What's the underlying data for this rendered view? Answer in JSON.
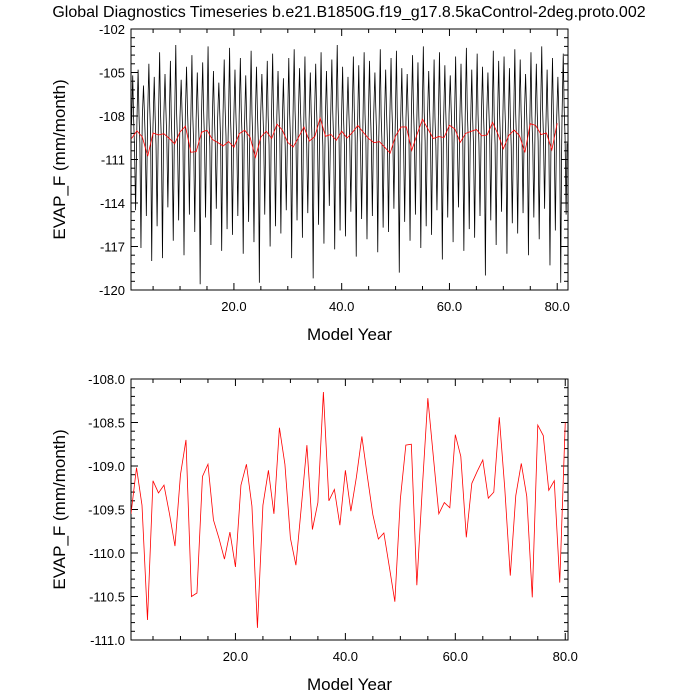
{
  "title": "Global Diagnostics Timeseries b.e21.B1850G.f19_g17.8.5kaControl-2deg.proto.002",
  "chart_data": [
    {
      "type": "line",
      "name": "monthly-and-annual",
      "xlabel": "Model Year",
      "ylabel": "EVAP_F (mm/month)",
      "xlim": [
        0.9,
        82.0
      ],
      "ylim": [
        -120,
        -102
      ],
      "xticks": [
        20,
        40,
        60,
        80
      ],
      "xtick_labels": [
        "20.0",
        "40.0",
        "60.0",
        "80.0"
      ],
      "yticks": [
        -120,
        -117,
        -114,
        -111,
        -108,
        -105,
        -102
      ],
      "ytick_labels": [
        "-120",
        "-117",
        "-114",
        "-111",
        "-108",
        "-105",
        "-102"
      ],
      "grid": false,
      "series": [
        {
          "color": "#000000",
          "monthly_max": [
            -105.2,
            -104.8,
            -105.9,
            -104.4,
            -105.3,
            -103.6,
            -105.1,
            -104.2,
            -103.1,
            -105.5,
            -104.6,
            -103.8,
            -105.0,
            -104.3,
            -103.2,
            -104.9,
            -105.7,
            -104.1,
            -103.3,
            -104.8,
            -104.0,
            -105.2,
            -103.5,
            -104.6,
            -105.1,
            -104.2,
            -103.7,
            -104.9,
            -105.4,
            -104.0,
            -103.4,
            -104.7,
            -103.9,
            -105.0,
            -104.4,
            -103.6,
            -104.9,
            -104.1,
            -103.1,
            -104.6,
            -105.3,
            -103.9,
            -104.5,
            -103.6,
            -104.2,
            -105.0,
            -103.4,
            -104.8,
            -104.0,
            -103.5,
            -104.7,
            -105.1,
            -103.8,
            -104.3,
            -103.2,
            -104.9,
            -104.1,
            -103.6,
            -104.5,
            -105.2,
            -103.9,
            -104.4,
            -103.3,
            -104.8,
            -103.7,
            -104.6,
            -105.0,
            -103.5,
            -104.2,
            -103.9,
            -104.7,
            -103.4,
            -104.1,
            -105.1,
            -103.6,
            -104.4,
            -103.2,
            -104.8,
            -104.0,
            -105.3,
            -103.7
          ],
          "monthly_min": [
            -114.5,
            -117.1,
            -114.9,
            -118.0,
            -115.6,
            -117.8,
            -114.3,
            -116.6,
            -115.2,
            -117.6,
            -114.8,
            -116.0,
            -119.6,
            -115.0,
            -116.9,
            -114.4,
            -117.3,
            -115.8,
            -116.2,
            -114.9,
            -117.5,
            -115.3,
            -116.7,
            -119.5,
            -114.8,
            -117.0,
            -115.6,
            -116.1,
            -114.5,
            -117.8,
            -115.2,
            -116.4,
            -114.7,
            -119.2,
            -115.5,
            -116.8,
            -114.2,
            -117.2,
            -115.9,
            -116.3,
            -114.6,
            -117.7,
            -115.1,
            -116.5,
            -114.9,
            -117.4,
            -115.7,
            -116.0,
            -114.4,
            -118.8,
            -115.3,
            -116.6,
            -114.8,
            -117.1,
            -115.6,
            -116.2,
            -114.5,
            -117.9,
            -115.0,
            -116.7,
            -114.3,
            -117.3,
            -115.8,
            -116.4,
            -114.9,
            -119.0,
            -115.2,
            -116.9,
            -114.6,
            -117.5,
            -115.4,
            -116.1,
            -114.7,
            -117.6,
            -115.0,
            -116.5,
            -114.4,
            -118.3,
            -115.9,
            -119.5,
            -114.8
          ],
          "monthly_range_note_x_start": 1.0,
          "monthly_range_note_x_end": 81.9
        },
        {
          "color": "#ff0000",
          "x": [
            1,
            2,
            3,
            4,
            5,
            6,
            7,
            8,
            9,
            10,
            11,
            12,
            13,
            14,
            15,
            16,
            17,
            18,
            19,
            20,
            21,
            22,
            23,
            24,
            25,
            26,
            27,
            28,
            29,
            30,
            31,
            32,
            33,
            34,
            35,
            36,
            37,
            38,
            39,
            40,
            41,
            42,
            43,
            44,
            45,
            46,
            47,
            48,
            49,
            50,
            51,
            52,
            53,
            54,
            55,
            56,
            57,
            58,
            59,
            60,
            61,
            62,
            63,
            64,
            65,
            66,
            67,
            68,
            69,
            70,
            71,
            72,
            73,
            74,
            75,
            76,
            77,
            78,
            79,
            80
          ],
          "y": [
            -109.55,
            -109.02,
            -109.45,
            -110.77,
            -109.17,
            -109.31,
            -109.22,
            -109.55,
            -109.92,
            -109.1,
            -108.7,
            -110.5,
            -110.46,
            -109.12,
            -108.98,
            -109.62,
            -109.83,
            -110.07,
            -109.76,
            -110.16,
            -109.22,
            -108.98,
            -109.46,
            -110.86,
            -109.45,
            -109.05,
            -109.55,
            -108.56,
            -108.98,
            -109.83,
            -110.14,
            -109.46,
            -108.76,
            -109.73,
            -109.42,
            -108.15,
            -109.4,
            -109.27,
            -109.68,
            -109.05,
            -109.52,
            -109.13,
            -108.66,
            -109.12,
            -109.56,
            -109.84,
            -109.77,
            -110.16,
            -110.56,
            -109.38,
            -108.76,
            -108.75,
            -110.37,
            -109.25,
            -108.22,
            -108.89,
            -109.55,
            -109.42,
            -109.48,
            -108.64,
            -108.89,
            -109.82,
            -109.2,
            -109.06,
            -108.93,
            -109.37,
            -109.3,
            -108.44,
            -109.26,
            -110.26,
            -109.34,
            -108.97,
            -109.35,
            -110.51,
            -108.53,
            -108.65,
            -109.28,
            -109.17,
            -110.34,
            -108.5
          ]
        }
      ]
    },
    {
      "type": "line",
      "name": "annual",
      "xlabel": "Model Year",
      "ylabel": "EVAP_F (mm/month)",
      "xlim": [
        1.0,
        80.5
      ],
      "ylim": [
        -111.0,
        -108.0
      ],
      "xticks": [
        20,
        40,
        60,
        80
      ],
      "xtick_labels": [
        "20.0",
        "40.0",
        "60.0",
        "80.0"
      ],
      "yticks": [
        -111.0,
        -110.5,
        -110.0,
        -109.5,
        -109.0,
        -108.5,
        -108.0
      ],
      "ytick_labels": [
        "-111.0",
        "-110.5",
        "-110.0",
        "-109.5",
        "-109.0",
        "-108.5",
        "-108.0"
      ],
      "grid": false,
      "series": [
        {
          "color": "#ff0000",
          "x": [
            1,
            2,
            3,
            4,
            5,
            6,
            7,
            8,
            9,
            10,
            11,
            12,
            13,
            14,
            15,
            16,
            17,
            18,
            19,
            20,
            21,
            22,
            23,
            24,
            25,
            26,
            27,
            28,
            29,
            30,
            31,
            32,
            33,
            34,
            35,
            36,
            37,
            38,
            39,
            40,
            41,
            42,
            43,
            44,
            45,
            46,
            47,
            48,
            49,
            50,
            51,
            52,
            53,
            54,
            55,
            56,
            57,
            58,
            59,
            60,
            61,
            62,
            63,
            64,
            65,
            66,
            67,
            68,
            69,
            70,
            71,
            72,
            73,
            74,
            75,
            76,
            77,
            78,
            79,
            80
          ],
          "y": [
            -109.55,
            -109.02,
            -109.45,
            -110.77,
            -109.17,
            -109.31,
            -109.22,
            -109.55,
            -109.92,
            -109.1,
            -108.7,
            -110.5,
            -110.46,
            -109.12,
            -108.98,
            -109.62,
            -109.83,
            -110.07,
            -109.76,
            -110.16,
            -109.22,
            -108.98,
            -109.46,
            -110.86,
            -109.45,
            -109.05,
            -109.55,
            -108.56,
            -108.98,
            -109.83,
            -110.14,
            -109.46,
            -108.76,
            -109.73,
            -109.42,
            -108.15,
            -109.4,
            -109.27,
            -109.68,
            -109.05,
            -109.52,
            -109.13,
            -108.66,
            -109.12,
            -109.56,
            -109.84,
            -109.77,
            -110.16,
            -110.56,
            -109.38,
            -108.76,
            -108.75,
            -110.37,
            -109.25,
            -108.22,
            -108.89,
            -109.55,
            -109.42,
            -109.48,
            -108.64,
            -108.89,
            -109.82,
            -109.2,
            -109.06,
            -108.93,
            -109.37,
            -109.3,
            -108.44,
            -109.26,
            -110.26,
            -109.34,
            -108.97,
            -109.35,
            -110.51,
            -108.53,
            -108.65,
            -109.28,
            -109.17,
            -110.34,
            -108.5
          ]
        }
      ]
    }
  ]
}
